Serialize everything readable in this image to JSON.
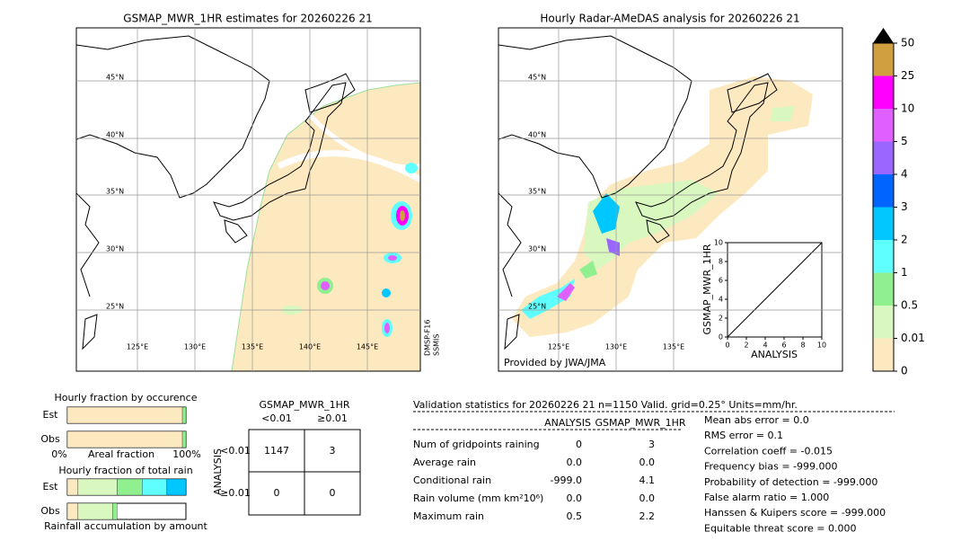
{
  "map_left": {
    "title": "GSMAP_MWR_1HR estimates for 20260226 21",
    "lat_labels": [
      "45°N",
      "40°N",
      "35°N",
      "30°N",
      "25°N"
    ],
    "lon_labels": [
      "125°E",
      "130°E",
      "135°E",
      "140°E",
      "145°E"
    ],
    "satellite": "DMSP-F16",
    "sensor": "SSMIS"
  },
  "map_right": {
    "title": "Hourly Radar-AMeDAS analysis for 20260226 21",
    "lat_labels": [
      "45°N",
      "40°N",
      "35°N",
      "30°N",
      "25°N"
    ],
    "lon_labels": [
      "125°E",
      "130°E",
      "135°E"
    ],
    "credit": "Provided by JWA/JMA"
  },
  "colorbar": {
    "ticks": [
      0,
      0.01,
      0.5,
      1,
      2,
      3,
      4,
      5,
      10,
      25,
      50
    ],
    "colors": [
      "#fde9c0",
      "#d8f8c0",
      "#90f090",
      "#60ffff",
      "#00c8ff",
      "#0064ff",
      "#9966ff",
      "#e060ff",
      "#ff00ff",
      "#d0a040"
    ],
    "extend_color": "#000000"
  },
  "scatter": {
    "type": "scatter",
    "xlabel": "ANALYSIS",
    "ylabel": "GSMAP_MWR_1HR",
    "xlim": [
      0,
      10
    ],
    "ylim": [
      0,
      10
    ],
    "xticks": [
      0,
      2,
      4,
      6,
      8,
      10
    ],
    "yticks": [
      0,
      2,
      4,
      6,
      8,
      10
    ]
  },
  "fractions": {
    "occurrence_title": "Hourly fraction by occurence",
    "total_title": "Hourly fraction of total rain",
    "caption": "Rainfall accumulation by amount",
    "axis_left": "0%",
    "axis_label": "Areal fraction",
    "axis_right": "100%",
    "bar_labels": [
      "Est",
      "Obs",
      "Est",
      "Obs"
    ],
    "occurrence": [
      {
        "values": [
          0.97,
          0.03
        ],
        "colors": [
          "#fde9c0",
          "#90f090"
        ]
      },
      {
        "values": [
          0.97,
          0.03
        ],
        "colors": [
          "#fde9c0",
          "#90f090"
        ]
      }
    ],
    "total": [
      {
        "values": [
          0.09,
          0.33,
          0.21,
          0.21,
          0.16
        ],
        "colors": [
          "#fde9c0",
          "#d8f8c0",
          "#90f090",
          "#60ffff",
          "#00c8ff"
        ]
      },
      {
        "values": [
          0.09,
          0.29,
          0.04
        ],
        "colors": [
          "#fde9c0",
          "#d8f8c0",
          "#90f090"
        ]
      }
    ]
  },
  "contingency": {
    "title": "GSMAP_MWR_1HR",
    "columns": [
      "<0.01",
      "≥0.01"
    ],
    "row_title": "ANALYSIS",
    "rows": [
      "<0.01",
      "≥0.01"
    ],
    "cells": [
      [
        1147,
        3
      ],
      [
        0,
        0
      ]
    ]
  },
  "validation": {
    "header": "Validation statistics for 20260226 21  n=1150 Valid. grid=0.25° Units=mm/hr.",
    "columns": [
      "ANALYSIS",
      "GSMAP_MWR_1HR"
    ],
    "rows": [
      [
        "Num of gridpoints raining",
        "0",
        "3"
      ],
      [
        "Average rain",
        "0.0",
        "0.0"
      ],
      [
        "Conditional rain",
        "-999.0",
        "4.1"
      ],
      [
        "Rain volume (mm km²10⁶)",
        "0.0",
        "0.0"
      ],
      [
        "Maximum rain",
        "0.5",
        "2.2"
      ]
    ],
    "scores": [
      "Mean abs error =    0.0",
      "RMS error =    0.1",
      "Correlation coeff = -0.015",
      "Frequency bias = -999.000",
      "Probability of detection = -999.000",
      "False alarm ratio =  1.000",
      "Hanssen & Kuipers score = -999.000",
      "Equitable threat score =  0.000"
    ]
  }
}
